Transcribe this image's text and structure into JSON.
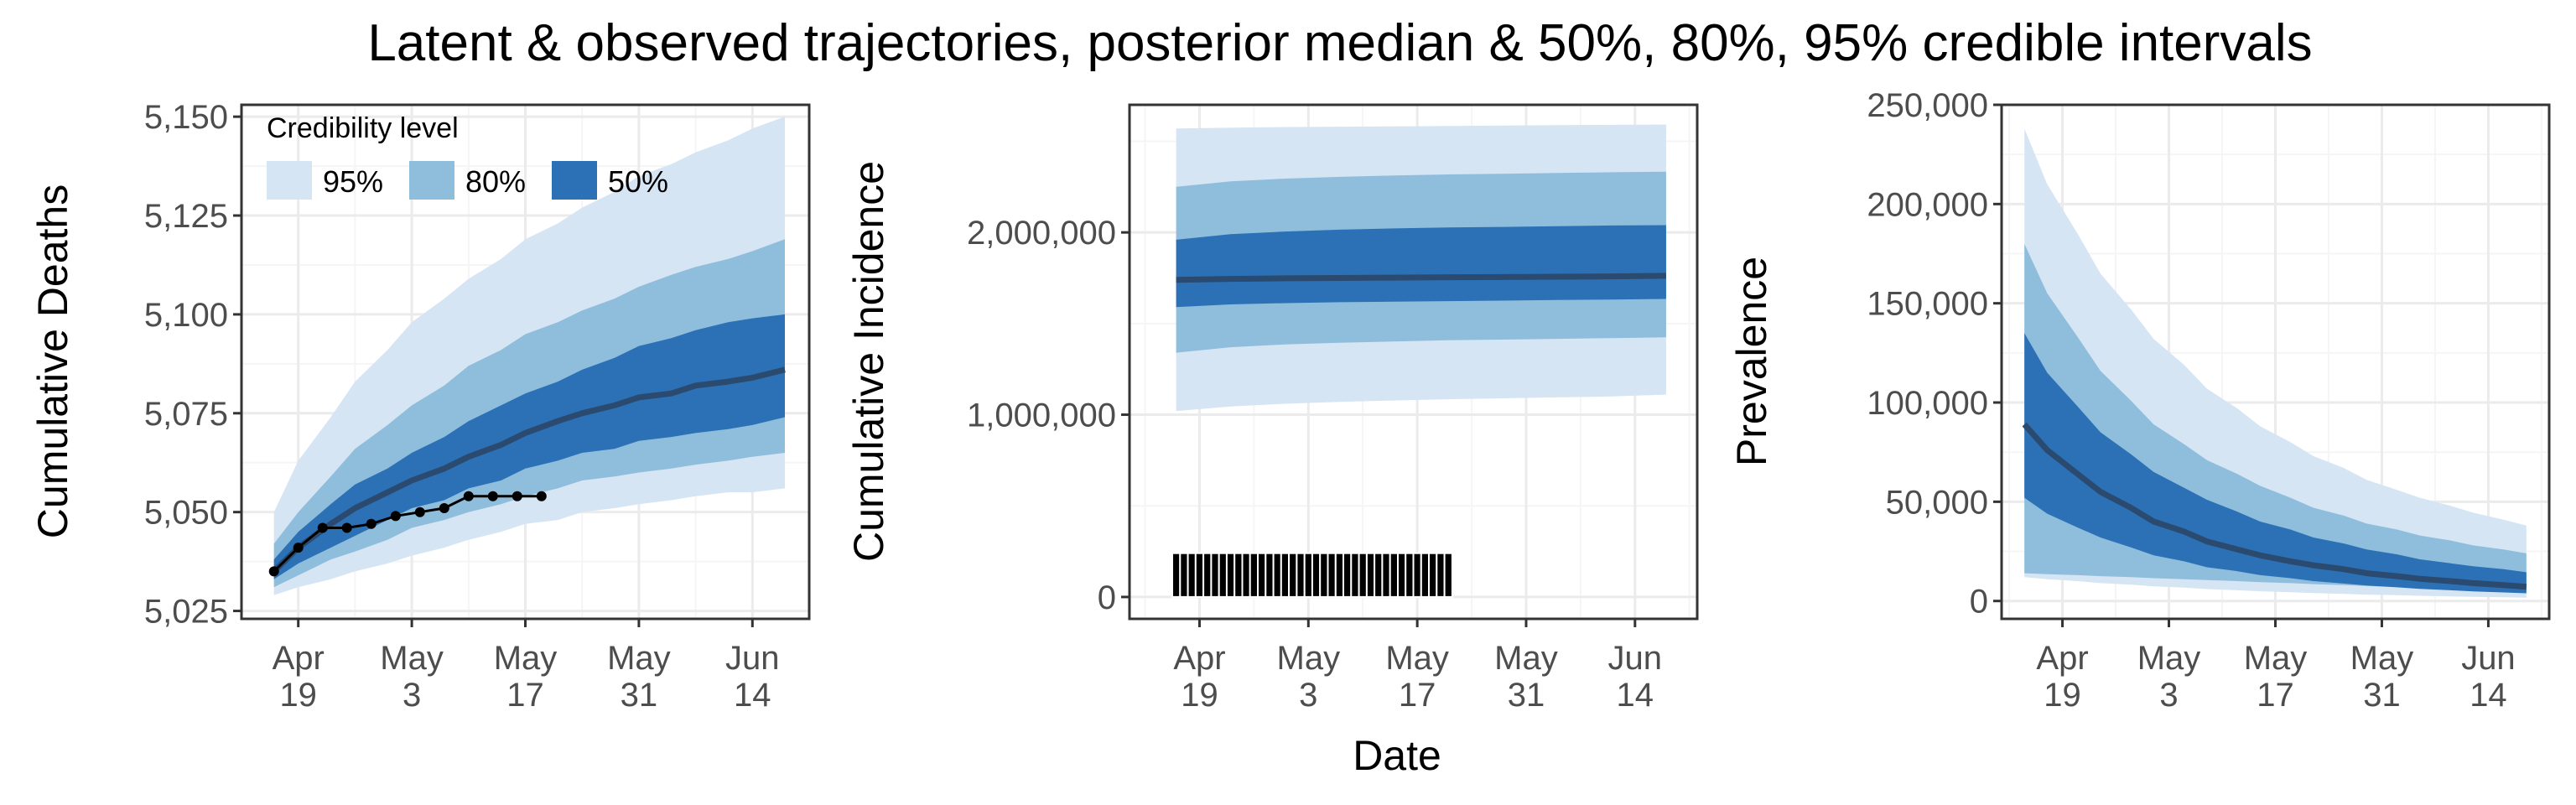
{
  "title": "Latent & observed trajectories, posterior median & 50%, 80%, 95% credible intervals",
  "x_axis_title": "Date",
  "colors": {
    "band_95": "#d6e5f4",
    "band_80": "#8fbedc",
    "band_50": "#2c71b5",
    "median": "#2b4a6f",
    "observed": "#000000",
    "grid_major": "#ebebeb",
    "grid_minor": "#f5f5f5",
    "panel_border": "#333333"
  },
  "legend": {
    "title": "Credibility level",
    "items": [
      {
        "label": "95%",
        "color": "#d6e5f4"
      },
      {
        "label": "80%",
        "color": "#8fbedc"
      },
      {
        "label": "50%",
        "color": "#2c71b5"
      }
    ],
    "placement": "top-left of first panel"
  },
  "chart_data": [
    {
      "type": "area",
      "ylabel": "Cumulative Deaths",
      "x_ticks": [
        {
          "date": "2020-04-19",
          "label": [
            "Apr",
            "19"
          ]
        },
        {
          "date": "2020-05-03",
          "label": [
            "May",
            "3"
          ]
        },
        {
          "date": "2020-05-17",
          "label": [
            "May",
            "17"
          ]
        },
        {
          "date": "2020-05-31",
          "label": [
            "May",
            "31"
          ]
        },
        {
          "date": "2020-06-14",
          "label": [
            "Jun",
            "14"
          ]
        }
      ],
      "xlim": [
        "2020-04-12",
        "2020-06-21"
      ],
      "ylim": [
        5023,
        5153
      ],
      "y_ticks": [
        5025,
        5050,
        5075,
        5100,
        5125,
        5150
      ],
      "y_tick_labels": [
        "5,025",
        "5,050",
        "5,075",
        "5,100",
        "5,125",
        "5,150"
      ],
      "x": [
        "2020-04-16",
        "2020-04-19",
        "2020-04-23",
        "2020-04-26",
        "2020-04-30",
        "2020-05-03",
        "2020-05-07",
        "2020-05-10",
        "2020-05-14",
        "2020-05-17",
        "2020-05-21",
        "2020-05-24",
        "2020-05-28",
        "2020-05-31",
        "2020-06-04",
        "2020-06-07",
        "2020-06-11",
        "2020-06-14",
        "2020-06-18"
      ],
      "median": [
        5035,
        5041,
        5047,
        5051,
        5055,
        5058,
        5061,
        5064,
        5067,
        5070,
        5073,
        5075,
        5077,
        5079,
        5080,
        5082,
        5083,
        5084,
        5086
      ],
      "band_50": {
        "lower": [
          5033,
          5037,
          5041,
          5044,
          5048,
          5051,
          5053,
          5056,
          5058,
          5061,
          5063,
          5065,
          5066,
          5068,
          5069,
          5070,
          5071,
          5072,
          5074
        ],
        "upper": [
          5038,
          5045,
          5052,
          5057,
          5061,
          5065,
          5069,
          5073,
          5077,
          5080,
          5083,
          5086,
          5089,
          5092,
          5094,
          5096,
          5098,
          5099,
          5100
        ]
      },
      "band_80": {
        "lower": [
          5031,
          5034,
          5038,
          5040,
          5043,
          5046,
          5048,
          5050,
          5052,
          5054,
          5056,
          5058,
          5059,
          5060,
          5061,
          5062,
          5063,
          5064,
          5065
        ],
        "upper": [
          5042,
          5050,
          5059,
          5066,
          5072,
          5077,
          5082,
          5087,
          5091,
          5095,
          5098,
          5101,
          5104,
          5107,
          5110,
          5112,
          5114,
          5116,
          5119
        ]
      },
      "band_95": {
        "lower": [
          5029,
          5031,
          5033,
          5035,
          5037,
          5039,
          5041,
          5043,
          5045,
          5047,
          5048,
          5050,
          5051,
          5052,
          5053,
          5054,
          5055,
          5055,
          5056
        ],
        "upper": [
          5050,
          5063,
          5074,
          5083,
          5091,
          5098,
          5104,
          5109,
          5114,
          5119,
          5123,
          5127,
          5131,
          5135,
          5138,
          5141,
          5144,
          5147,
          5150
        ]
      },
      "observed": {
        "x": [
          "2020-04-16",
          "2020-04-19",
          "2020-04-22",
          "2020-04-25",
          "2020-04-28",
          "2020-05-01",
          "2020-05-04",
          "2020-05-07",
          "2020-05-10",
          "2020-05-13",
          "2020-05-16",
          "2020-05-19"
        ],
        "y": [
          5035,
          5041,
          5046,
          5046,
          5047,
          5049,
          5050,
          5051,
          5054,
          5054,
          5054,
          5054
        ]
      }
    },
    {
      "type": "area",
      "ylabel": "Cumulative Incidence",
      "x_ticks": [
        {
          "date": "2020-04-19",
          "label": [
            "Apr",
            "19"
          ]
        },
        {
          "date": "2020-05-03",
          "label": [
            "May",
            "3"
          ]
        },
        {
          "date": "2020-05-17",
          "label": [
            "May",
            "17"
          ]
        },
        {
          "date": "2020-05-31",
          "label": [
            "May",
            "31"
          ]
        },
        {
          "date": "2020-06-14",
          "label": [
            "Jun",
            "14"
          ]
        }
      ],
      "xlim": [
        "2020-04-10",
        "2020-06-22"
      ],
      "ylim": [
        -120000,
        2700000
      ],
      "y_ticks": [
        0,
        1000000,
        2000000
      ],
      "y_tick_labels": [
        "0",
        "1,000,000",
        "2,000,000"
      ],
      "x": [
        "2020-04-16",
        "2020-04-23",
        "2020-04-30",
        "2020-05-07",
        "2020-05-14",
        "2020-05-21",
        "2020-05-28",
        "2020-06-04",
        "2020-06-11",
        "2020-06-18"
      ],
      "median": [
        1740000,
        1745000,
        1748000,
        1750000,
        1752000,
        1754000,
        1755000,
        1757000,
        1759000,
        1762000
      ],
      "band_50": {
        "lower": [
          1590000,
          1605000,
          1612000,
          1617000,
          1620000,
          1623000,
          1626000,
          1629000,
          1632000,
          1635000
        ],
        "upper": [
          1960000,
          1990000,
          2005000,
          2015000,
          2022000,
          2027000,
          2030000,
          2034000,
          2038000,
          2040000
        ]
      },
      "band_80": {
        "lower": [
          1340000,
          1370000,
          1385000,
          1395000,
          1402000,
          1408000,
          1412000,
          1416000,
          1420000,
          1425000
        ],
        "upper": [
          2250000,
          2280000,
          2295000,
          2305000,
          2312000,
          2318000,
          2322000,
          2326000,
          2330000,
          2333000
        ]
      },
      "band_95": {
        "lower": [
          1020000,
          1045000,
          1060000,
          1070000,
          1078000,
          1085000,
          1090000,
          1095000,
          1100000,
          1110000
        ],
        "upper": [
          2570000,
          2575000,
          2578000,
          2580000,
          2582000,
          2584000,
          2586000,
          2588000,
          2590000,
          2592000
        ]
      },
      "observed_bars": {
        "x": [
          "2020-04-16",
          "2020-04-17",
          "2020-04-18",
          "2020-04-19",
          "2020-04-20",
          "2020-04-21",
          "2020-04-22",
          "2020-04-23",
          "2020-04-24",
          "2020-04-25",
          "2020-04-26",
          "2020-04-27",
          "2020-04-28",
          "2020-04-29",
          "2020-04-30",
          "2020-05-01",
          "2020-05-02",
          "2020-05-03",
          "2020-05-04",
          "2020-05-05",
          "2020-05-06",
          "2020-05-07",
          "2020-05-08",
          "2020-05-09",
          "2020-05-10",
          "2020-05-11",
          "2020-05-12",
          "2020-05-13",
          "2020-05-14",
          "2020-05-15",
          "2020-05-16",
          "2020-05-17",
          "2020-05-18",
          "2020-05-19",
          "2020-05-20",
          "2020-05-21"
        ],
        "y": [
          240000,
          240000,
          240000,
          240000,
          240000,
          240000,
          240000,
          240000,
          240000,
          240000,
          240000,
          240000,
          240000,
          240000,
          240000,
          240000,
          240000,
          240000,
          240000,
          240000,
          240000,
          240000,
          240000,
          240000,
          240000,
          240000,
          240000,
          240000,
          240000,
          240000,
          240000,
          240000,
          240000,
          240000,
          240000,
          240000
        ]
      }
    },
    {
      "type": "area",
      "ylabel": "Prevalence",
      "x_ticks": [
        {
          "date": "2020-04-19",
          "label": [
            "Apr",
            "19"
          ]
        },
        {
          "date": "2020-05-03",
          "label": [
            "May",
            "3"
          ]
        },
        {
          "date": "2020-05-17",
          "label": [
            "May",
            "17"
          ]
        },
        {
          "date": "2020-05-31",
          "label": [
            "May",
            "31"
          ]
        },
        {
          "date": "2020-06-14",
          "label": [
            "Jun",
            "14"
          ]
        }
      ],
      "xlim": [
        "2020-04-11",
        "2020-06-22"
      ],
      "ylim": [
        -9000,
        250000
      ],
      "y_ticks": [
        0,
        50000,
        100000,
        150000,
        200000,
        250000
      ],
      "y_tick_labels": [
        "0",
        "50,000",
        "100,000",
        "150,000",
        "200,000",
        "250,000"
      ],
      "x": [
        "2020-04-14",
        "2020-04-17",
        "2020-04-21",
        "2020-04-24",
        "2020-04-28",
        "2020-05-01",
        "2020-05-05",
        "2020-05-08",
        "2020-05-12",
        "2020-05-15",
        "2020-05-19",
        "2020-05-22",
        "2020-05-26",
        "2020-05-29",
        "2020-06-02",
        "2020-06-05",
        "2020-06-09",
        "2020-06-12",
        "2020-06-16",
        "2020-06-19"
      ],
      "median": [
        89000,
        76000,
        64000,
        55000,
        47000,
        40000,
        35000,
        30000,
        26000,
        23000,
        20000,
        18000,
        16000,
        14000,
        12500,
        11200,
        10000,
        9000,
        8000,
        7200
      ],
      "band_50": {
        "lower": [
          52000,
          44000,
          37000,
          32000,
          27000,
          23000,
          20000,
          17000,
          15000,
          13000,
          11500,
          10000,
          8800,
          7800,
          6900,
          6100,
          5400,
          4800,
          4300,
          3900
        ],
        "upper": [
          135000,
          115000,
          98000,
          85000,
          74000,
          65000,
          57000,
          51000,
          45000,
          40000,
          36000,
          32000,
          29000,
          26000,
          23500,
          21000,
          19000,
          17500,
          16000,
          14500
        ]
      },
      "band_80": {
        "lower": [
          14000,
          13500,
          13000,
          12500,
          12000,
          11500,
          11000,
          10500,
          10000,
          9500,
          9000,
          8500,
          8000,
          7500,
          7000,
          6500,
          6000,
          5500,
          5000,
          4500
        ],
        "upper": [
          180000,
          155000,
          133000,
          116000,
          101000,
          89000,
          79000,
          71000,
          64000,
          58000,
          52000,
          47000,
          43000,
          39000,
          36000,
          33000,
          30500,
          28000,
          26000,
          24000
        ]
      },
      "band_95": {
        "lower": [
          12000,
          11000,
          10000,
          9000,
          8200,
          7400,
          6700,
          6000,
          5400,
          4900,
          4400,
          4000,
          3600,
          3200,
          2900,
          2600,
          2300,
          2100,
          1900,
          1700
        ],
        "upper": [
          238000,
          210000,
          185000,
          165000,
          147000,
          132000,
          119000,
          107000,
          97000,
          88000,
          80000,
          73000,
          67000,
          61000,
          56000,
          52000,
          48000,
          44500,
          41000,
          38000
        ]
      }
    }
  ]
}
